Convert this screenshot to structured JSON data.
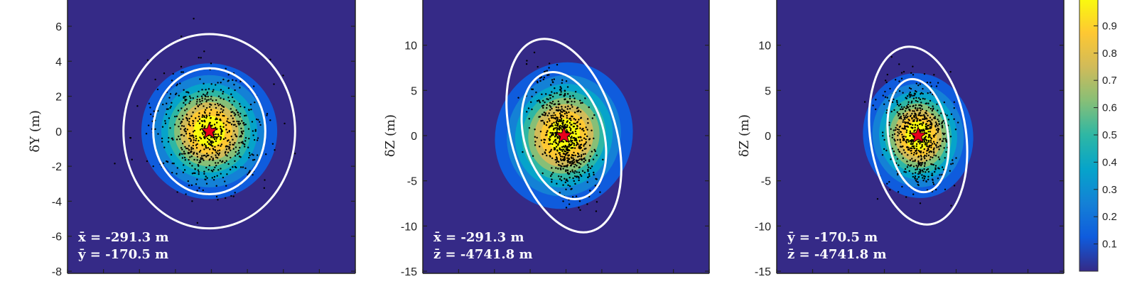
{
  "chart_data": [
    {
      "type": "heatmap",
      "subtype": "2d probability density with scatter",
      "ylabel": "δY (m)",
      "ylim": [
        -8,
        7.5
      ],
      "yticks": [
        -8,
        -6,
        -4,
        -2,
        0,
        2,
        4,
        6
      ],
      "xticks_shown": false,
      "center": [
        0,
        0
      ],
      "density": {
        "sigma_x": 1.85,
        "sigma_y": 1.85,
        "tilt_deg": 0
      },
      "contours": [
        {
          "name": "inner",
          "semi_x": 3.2,
          "semi_y": 3.6,
          "tilt_deg": 0
        },
        {
          "name": "outer",
          "semi_x": 4.9,
          "semi_y": 5.55,
          "tilt_deg": 0
        }
      ],
      "scatter": {
        "count": 700,
        "spread_x": 1.55,
        "spread_y": 1.6
      },
      "annotations": [
        {
          "mean": "x̄ = -291.3 m"
        },
        {
          "mean": "ȳ = -170.5 m"
        }
      ]
    },
    {
      "type": "heatmap",
      "subtype": "2d probability density with scatter",
      "ylabel": "δZ (m)",
      "ylim": [
        -15,
        15
      ],
      "yticks": [
        -15,
        -10,
        -5,
        0,
        5,
        10
      ],
      "xticks_shown": false,
      "center": [
        0,
        0
      ],
      "density": {
        "sigma_x": 3.9,
        "sigma_y": 3.6,
        "tilt_deg": -70
      },
      "contours": [
        {
          "name": "inner",
          "semi_x": 4.4,
          "semi_y": 7.2,
          "tilt_deg": -16
        },
        {
          "name": "outer",
          "semi_x": 5.8,
          "semi_y": 11.0,
          "tilt_deg": -16
        }
      ],
      "scatter": {
        "count": 700,
        "spread_x": 1.3,
        "spread_y": 3.1,
        "tilt_deg": -16
      },
      "annotations": [
        {
          "mean": "x̄ = -291.3 m"
        },
        {
          "mean": "z̄ = -4741.8 m"
        }
      ]
    },
    {
      "type": "heatmap",
      "subtype": "2d probability density with scatter",
      "ylabel": "δZ (m)",
      "ylim": [
        -15,
        15
      ],
      "yticks": [
        -15,
        -10,
        -5,
        0,
        5,
        10
      ],
      "xticks_shown": false,
      "center": [
        0,
        0
      ],
      "density": {
        "sigma_x": 2.9,
        "sigma_y": 3.3,
        "tilt_deg": -8
      },
      "contours": [
        {
          "name": "inner",
          "semi_x": 3.3,
          "semi_y": 6.3,
          "tilt_deg": -8
        },
        {
          "name": "outer",
          "semi_x": 5.3,
          "semi_y": 9.9,
          "tilt_deg": -8
        }
      ],
      "scatter": {
        "count": 700,
        "spread_x": 1.6,
        "spread_y": 3.0,
        "tilt_deg": -8
      },
      "annotations": [
        {
          "mean": "ȳ = -170.5 m"
        },
        {
          "mean": "z̄ = -4741.8 m"
        }
      ]
    }
  ],
  "colorbar": {
    "ticks": [
      "0.1",
      "0.2",
      "0.3",
      "0.4",
      "0.5",
      "0.6",
      "0.7",
      "0.8",
      "0.9"
    ],
    "range": [
      0,
      1
    ]
  },
  "colors": {
    "background": "#352a87",
    "contour": "#ffffff",
    "marker": "#e8001c",
    "points": "#000000",
    "colormap": [
      "#352a87",
      "#0f5cdd",
      "#1481d6",
      "#06a4ca",
      "#2eb7a4",
      "#87bf77",
      "#d1bb59",
      "#fec832",
      "#f9fb0e"
    ]
  }
}
